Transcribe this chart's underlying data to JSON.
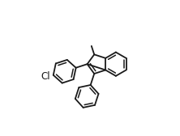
{
  "background_color": "#ffffff",
  "line_color": "#1a1a1a",
  "line_width": 1.3,
  "cl_label": "Cl",
  "cl_fontsize": 8.5,
  "fig_width": 2.22,
  "fig_height": 1.68,
  "dpi": 100
}
